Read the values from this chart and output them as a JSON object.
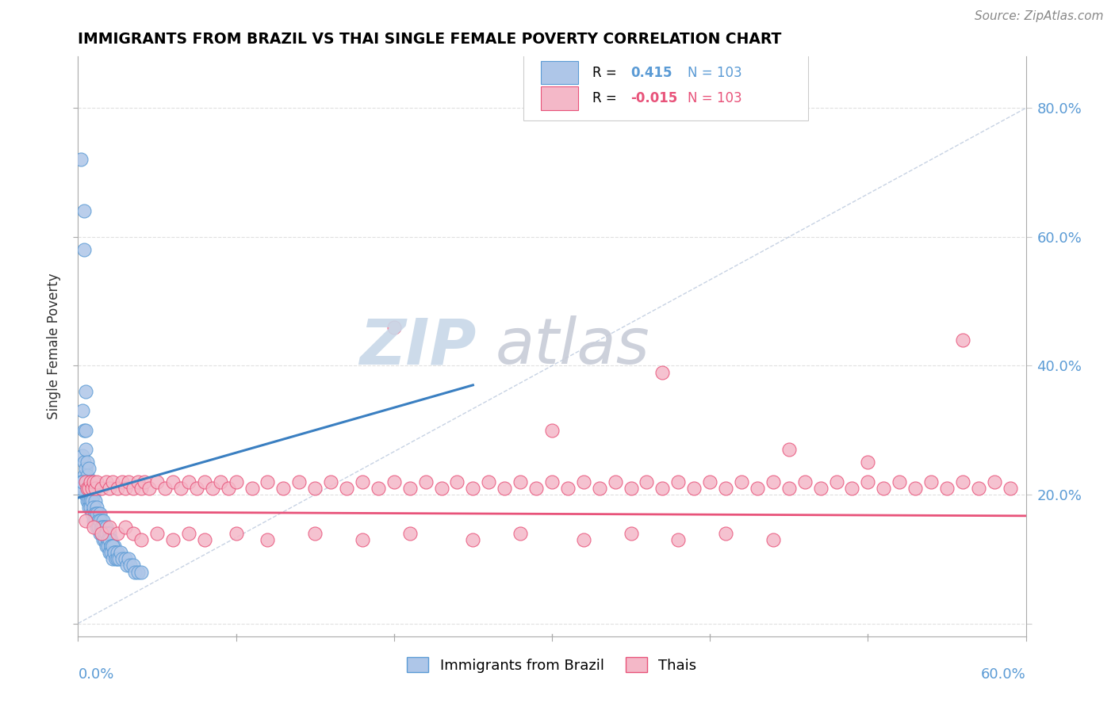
{
  "title": "IMMIGRANTS FROM BRAZIL VS THAI SINGLE FEMALE POVERTY CORRELATION CHART",
  "source": "Source: ZipAtlas.com",
  "ylabel": "Single Female Poverty",
  "x_lim": [
    0.0,
    0.6
  ],
  "y_lim": [
    -0.02,
    0.88
  ],
  "brazil_color": "#aec6e8",
  "thai_color": "#f4b8c8",
  "brazil_edge": "#5b9bd5",
  "thai_edge": "#e8537a",
  "reg_brazil_color": "#3a7fc1",
  "reg_thai_color": "#e8537a",
  "brazil_points": [
    [
      0.002,
      0.72
    ],
    [
      0.004,
      0.64
    ],
    [
      0.004,
      0.58
    ],
    [
      0.003,
      0.33
    ],
    [
      0.004,
      0.3
    ],
    [
      0.005,
      0.36
    ],
    [
      0.003,
      0.26
    ],
    [
      0.004,
      0.25
    ],
    [
      0.005,
      0.27
    ],
    [
      0.005,
      0.3
    ],
    [
      0.003,
      0.22
    ],
    [
      0.004,
      0.23
    ],
    [
      0.005,
      0.24
    ],
    [
      0.006,
      0.25
    ],
    [
      0.004,
      0.21
    ],
    [
      0.005,
      0.22
    ],
    [
      0.006,
      0.23
    ],
    [
      0.007,
      0.24
    ],
    [
      0.005,
      0.2
    ],
    [
      0.006,
      0.21
    ],
    [
      0.007,
      0.2
    ],
    [
      0.008,
      0.22
    ],
    [
      0.006,
      0.19
    ],
    [
      0.007,
      0.19
    ],
    [
      0.008,
      0.2
    ],
    [
      0.009,
      0.21
    ],
    [
      0.007,
      0.18
    ],
    [
      0.008,
      0.19
    ],
    [
      0.009,
      0.18
    ],
    [
      0.01,
      0.2
    ],
    [
      0.008,
      0.18
    ],
    [
      0.009,
      0.19
    ],
    [
      0.01,
      0.17
    ],
    [
      0.011,
      0.19
    ],
    [
      0.009,
      0.17
    ],
    [
      0.01,
      0.18
    ],
    [
      0.011,
      0.17
    ],
    [
      0.012,
      0.18
    ],
    [
      0.01,
      0.16
    ],
    [
      0.011,
      0.17
    ],
    [
      0.012,
      0.16
    ],
    [
      0.013,
      0.17
    ],
    [
      0.011,
      0.16
    ],
    [
      0.012,
      0.17
    ],
    [
      0.013,
      0.16
    ],
    [
      0.014,
      0.17
    ],
    [
      0.012,
      0.15
    ],
    [
      0.013,
      0.16
    ],
    [
      0.014,
      0.15
    ],
    [
      0.015,
      0.16
    ],
    [
      0.013,
      0.15
    ],
    [
      0.014,
      0.16
    ],
    [
      0.015,
      0.15
    ],
    [
      0.016,
      0.16
    ],
    [
      0.014,
      0.14
    ],
    [
      0.015,
      0.15
    ],
    [
      0.016,
      0.14
    ],
    [
      0.017,
      0.15
    ],
    [
      0.015,
      0.14
    ],
    [
      0.016,
      0.15
    ],
    [
      0.017,
      0.14
    ],
    [
      0.018,
      0.15
    ],
    [
      0.016,
      0.13
    ],
    [
      0.017,
      0.14
    ],
    [
      0.018,
      0.13
    ],
    [
      0.019,
      0.14
    ],
    [
      0.017,
      0.13
    ],
    [
      0.018,
      0.14
    ],
    [
      0.019,
      0.13
    ],
    [
      0.02,
      0.14
    ],
    [
      0.018,
      0.12
    ],
    [
      0.019,
      0.13
    ],
    [
      0.02,
      0.12
    ],
    [
      0.021,
      0.13
    ],
    [
      0.019,
      0.12
    ],
    [
      0.02,
      0.13
    ],
    [
      0.021,
      0.12
    ],
    [
      0.022,
      0.12
    ],
    [
      0.02,
      0.11
    ],
    [
      0.021,
      0.12
    ],
    [
      0.022,
      0.11
    ],
    [
      0.023,
      0.12
    ],
    [
      0.021,
      0.11
    ],
    [
      0.022,
      0.12
    ],
    [
      0.023,
      0.11
    ],
    [
      0.024,
      0.11
    ],
    [
      0.022,
      0.1
    ],
    [
      0.023,
      0.11
    ],
    [
      0.024,
      0.1
    ],
    [
      0.025,
      0.11
    ],
    [
      0.025,
      0.1
    ],
    [
      0.026,
      0.1
    ],
    [
      0.027,
      0.11
    ],
    [
      0.028,
      0.1
    ],
    [
      0.03,
      0.1
    ],
    [
      0.031,
      0.09
    ],
    [
      0.032,
      0.1
    ],
    [
      0.033,
      0.09
    ],
    [
      0.035,
      0.09
    ],
    [
      0.036,
      0.08
    ],
    [
      0.038,
      0.08
    ],
    [
      0.04,
      0.08
    ],
    [
      0.002,
      0.22
    ],
    [
      0.002,
      0.21
    ],
    [
      0.003,
      0.22
    ]
  ],
  "thai_points": [
    [
      0.005,
      0.22
    ],
    [
      0.006,
      0.21
    ],
    [
      0.007,
      0.21
    ],
    [
      0.008,
      0.22
    ],
    [
      0.009,
      0.21
    ],
    [
      0.01,
      0.22
    ],
    [
      0.011,
      0.21
    ],
    [
      0.012,
      0.22
    ],
    [
      0.015,
      0.21
    ],
    [
      0.018,
      0.22
    ],
    [
      0.02,
      0.21
    ],
    [
      0.022,
      0.22
    ],
    [
      0.025,
      0.21
    ],
    [
      0.028,
      0.22
    ],
    [
      0.03,
      0.21
    ],
    [
      0.032,
      0.22
    ],
    [
      0.035,
      0.21
    ],
    [
      0.038,
      0.22
    ],
    [
      0.04,
      0.21
    ],
    [
      0.042,
      0.22
    ],
    [
      0.045,
      0.21
    ],
    [
      0.05,
      0.22
    ],
    [
      0.055,
      0.21
    ],
    [
      0.06,
      0.22
    ],
    [
      0.065,
      0.21
    ],
    [
      0.07,
      0.22
    ],
    [
      0.075,
      0.21
    ],
    [
      0.08,
      0.22
    ],
    [
      0.085,
      0.21
    ],
    [
      0.09,
      0.22
    ],
    [
      0.095,
      0.21
    ],
    [
      0.1,
      0.22
    ],
    [
      0.11,
      0.21
    ],
    [
      0.12,
      0.22
    ],
    [
      0.13,
      0.21
    ],
    [
      0.14,
      0.22
    ],
    [
      0.15,
      0.21
    ],
    [
      0.16,
      0.22
    ],
    [
      0.17,
      0.21
    ],
    [
      0.18,
      0.22
    ],
    [
      0.19,
      0.21
    ],
    [
      0.2,
      0.22
    ],
    [
      0.21,
      0.21
    ],
    [
      0.22,
      0.22
    ],
    [
      0.23,
      0.21
    ],
    [
      0.24,
      0.22
    ],
    [
      0.25,
      0.21
    ],
    [
      0.26,
      0.22
    ],
    [
      0.27,
      0.21
    ],
    [
      0.28,
      0.22
    ],
    [
      0.29,
      0.21
    ],
    [
      0.3,
      0.22
    ],
    [
      0.31,
      0.21
    ],
    [
      0.32,
      0.22
    ],
    [
      0.33,
      0.21
    ],
    [
      0.34,
      0.22
    ],
    [
      0.35,
      0.21
    ],
    [
      0.36,
      0.22
    ],
    [
      0.37,
      0.21
    ],
    [
      0.38,
      0.22
    ],
    [
      0.39,
      0.21
    ],
    [
      0.4,
      0.22
    ],
    [
      0.41,
      0.21
    ],
    [
      0.42,
      0.22
    ],
    [
      0.43,
      0.21
    ],
    [
      0.44,
      0.22
    ],
    [
      0.45,
      0.21
    ],
    [
      0.46,
      0.22
    ],
    [
      0.47,
      0.21
    ],
    [
      0.48,
      0.22
    ],
    [
      0.49,
      0.21
    ],
    [
      0.5,
      0.22
    ],
    [
      0.51,
      0.21
    ],
    [
      0.52,
      0.22
    ],
    [
      0.53,
      0.21
    ],
    [
      0.54,
      0.22
    ],
    [
      0.55,
      0.21
    ],
    [
      0.56,
      0.22
    ],
    [
      0.57,
      0.21
    ],
    [
      0.58,
      0.22
    ],
    [
      0.59,
      0.21
    ],
    [
      0.005,
      0.16
    ],
    [
      0.01,
      0.15
    ],
    [
      0.015,
      0.14
    ],
    [
      0.02,
      0.15
    ],
    [
      0.025,
      0.14
    ],
    [
      0.03,
      0.15
    ],
    [
      0.035,
      0.14
    ],
    [
      0.04,
      0.13
    ],
    [
      0.05,
      0.14
    ],
    [
      0.06,
      0.13
    ],
    [
      0.07,
      0.14
    ],
    [
      0.08,
      0.13
    ],
    [
      0.1,
      0.14
    ],
    [
      0.12,
      0.13
    ],
    [
      0.15,
      0.14
    ],
    [
      0.18,
      0.13
    ],
    [
      0.21,
      0.14
    ],
    [
      0.25,
      0.13
    ],
    [
      0.28,
      0.14
    ],
    [
      0.32,
      0.13
    ],
    [
      0.35,
      0.14
    ],
    [
      0.38,
      0.13
    ],
    [
      0.41,
      0.14
    ],
    [
      0.44,
      0.13
    ],
    [
      0.2,
      0.46
    ],
    [
      0.37,
      0.39
    ],
    [
      0.56,
      0.44
    ],
    [
      0.3,
      0.3
    ],
    [
      0.45,
      0.27
    ],
    [
      0.5,
      0.25
    ]
  ],
  "brazil_reg_line": [
    [
      0.0,
      0.195
    ],
    [
      0.25,
      0.37
    ]
  ],
  "thai_reg_line": [
    [
      0.0,
      0.173
    ],
    [
      0.6,
      0.167
    ]
  ],
  "diag_line": [
    [
      0.0,
      0.0
    ],
    [
      0.6,
      0.8
    ]
  ],
  "watermark_zip_color": "#c8d8e8",
  "watermark_atlas_color": "#c8ccd8",
  "grid_color": "#e0e0e0",
  "diag_color": "#b0c0d8"
}
